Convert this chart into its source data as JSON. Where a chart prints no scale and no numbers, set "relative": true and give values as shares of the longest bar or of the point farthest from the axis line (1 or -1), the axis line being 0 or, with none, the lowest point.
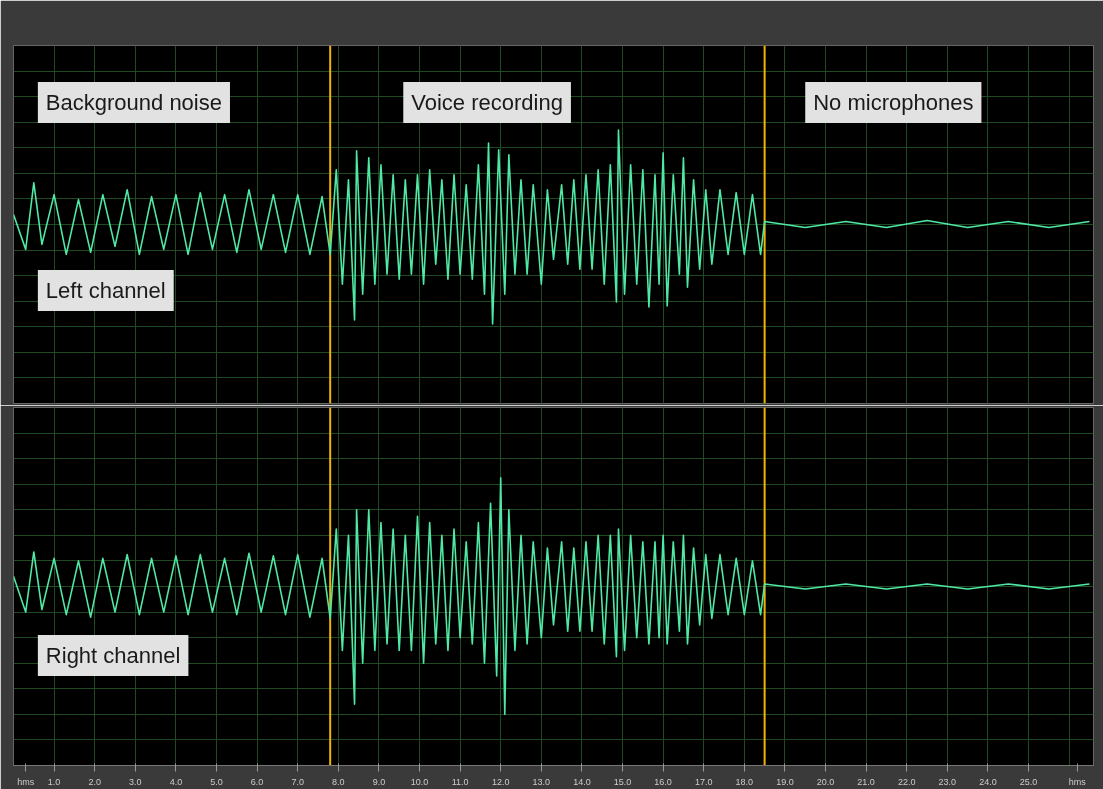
{
  "chart_data": [
    {
      "type": "line",
      "relative": true,
      "color": "#4fe8a4",
      "grid": true,
      "tick_labels": false,
      "xlim": [
        0,
        26.6
      ],
      "annotations": [
        "Background noise",
        "Voice recording",
        "No microphones",
        "Left channel"
      ],
      "ref_lines": [
        {
          "axis": "x",
          "value": 7.8,
          "color": "#f0b400"
        },
        {
          "axis": "x",
          "value": 18.5,
          "color": "#f0b400"
        }
      ],
      "x": [
        0.0,
        0.3,
        0.5,
        0.7,
        1.0,
        1.3,
        1.6,
        1.9,
        2.2,
        2.5,
        2.8,
        3.1,
        3.4,
        3.7,
        4.0,
        4.3,
        4.6,
        4.9,
        5.2,
        5.5,
        5.8,
        6.1,
        6.4,
        6.7,
        7.0,
        7.3,
        7.6,
        7.8,
        7.95,
        8.1,
        8.25,
        8.4,
        8.45,
        8.6,
        8.75,
        8.9,
        9.05,
        9.2,
        9.35,
        9.5,
        9.65,
        9.8,
        9.95,
        10.1,
        10.25,
        10.4,
        10.55,
        10.7,
        10.85,
        11.0,
        11.15,
        11.3,
        11.45,
        11.6,
        11.7,
        11.8,
        11.95,
        12.1,
        12.2,
        12.35,
        12.5,
        12.65,
        12.8,
        13.0,
        13.15,
        13.3,
        13.5,
        13.65,
        13.8,
        13.95,
        14.1,
        14.25,
        14.4,
        14.55,
        14.7,
        14.85,
        14.9,
        15.05,
        15.2,
        15.35,
        15.5,
        15.65,
        15.8,
        15.9,
        16.0,
        16.1,
        16.25,
        16.4,
        16.5,
        16.6,
        16.75,
        16.9,
        17.05,
        17.2,
        17.4,
        17.6,
        17.8,
        18.0,
        18.2,
        18.4,
        18.5,
        19.5,
        20.5,
        21.5,
        22.5,
        23.5,
        24.5,
        25.5,
        26.5
      ],
      "values": [
        0.1,
        -0.25,
        0.42,
        -0.2,
        0.3,
        -0.3,
        0.25,
        -0.28,
        0.3,
        -0.22,
        0.35,
        -0.3,
        0.28,
        -0.25,
        0.3,
        -0.3,
        0.32,
        -0.25,
        0.3,
        -0.28,
        0.35,
        -0.25,
        0.3,
        -0.28,
        0.3,
        -0.3,
        0.28,
        -0.3,
        0.55,
        -0.6,
        0.45,
        -0.96,
        0.74,
        -0.7,
        0.67,
        -0.6,
        0.6,
        -0.5,
        0.5,
        -0.55,
        0.45,
        -0.5,
        0.5,
        -0.6,
        0.55,
        -0.4,
        0.45,
        -0.55,
        0.5,
        -0.5,
        0.4,
        -0.55,
        0.6,
        -0.7,
        0.82,
        -1.0,
        0.75,
        -0.7,
        0.7,
        -0.5,
        0.45,
        -0.5,
        0.4,
        -0.6,
        0.35,
        -0.35,
        0.4,
        -0.4,
        0.45,
        -0.45,
        0.5,
        -0.45,
        0.55,
        -0.6,
        0.6,
        -0.78,
        0.95,
        -0.7,
        0.6,
        -0.6,
        0.55,
        -0.83,
        0.5,
        -0.6,
        0.72,
        -0.82,
        0.5,
        -0.5,
        0.67,
        -0.63,
        0.45,
        -0.45,
        0.35,
        -0.4,
        0.35,
        -0.3,
        0.32,
        -0.3,
        0.3,
        -0.3,
        0.03,
        -0.03,
        0.03,
        -0.03,
        0.04,
        -0.03,
        0.03,
        -0.03,
        0.03
      ]
    },
    {
      "type": "line",
      "relative": true,
      "color": "#4fe8a4",
      "grid": true,
      "tick_labels": "x",
      "xlim": [
        0,
        26.6
      ],
      "xticks": [
        {
          "value": 0.3,
          "label": "hms"
        },
        {
          "value": 1,
          "label": "1.0"
        },
        {
          "value": 2,
          "label": "2.0"
        },
        {
          "value": 3,
          "label": "3.0"
        },
        {
          "value": 4,
          "label": "4.0"
        },
        {
          "value": 5,
          "label": "5.0"
        },
        {
          "value": 6,
          "label": "6.0"
        },
        {
          "value": 7,
          "label": "7.0"
        },
        {
          "value": 8,
          "label": "8.0"
        },
        {
          "value": 9,
          "label": "9.0"
        },
        {
          "value": 10,
          "label": "10.0"
        },
        {
          "value": 11,
          "label": "11.0"
        },
        {
          "value": 12,
          "label": "12.0"
        },
        {
          "value": 13,
          "label": "13.0"
        },
        {
          "value": 14,
          "label": "14.0"
        },
        {
          "value": 15,
          "label": "15.0"
        },
        {
          "value": 16,
          "label": "16.0"
        },
        {
          "value": 17,
          "label": "17.0"
        },
        {
          "value": 18,
          "label": "18.0"
        },
        {
          "value": 19,
          "label": "19.0"
        },
        {
          "value": 20,
          "label": "20.0"
        },
        {
          "value": 21,
          "label": "21.0"
        },
        {
          "value": 22,
          "label": "22.0"
        },
        {
          "value": 23,
          "label": "23.0"
        },
        {
          "value": 24,
          "label": "24.0"
        },
        {
          "value": 25,
          "label": "25.0"
        },
        {
          "value": 26.2,
          "label": "hms"
        }
      ],
      "annotations": [
        "Right channel"
      ],
      "ref_lines": [
        {
          "axis": "x",
          "value": 7.8,
          "color": "#f0b400"
        },
        {
          "axis": "x",
          "value": 18.5,
          "color": "#f0b400"
        }
      ],
      "x": [
        0.0,
        0.3,
        0.5,
        0.7,
        1.0,
        1.3,
        1.6,
        1.9,
        2.2,
        2.5,
        2.8,
        3.1,
        3.4,
        3.7,
        4.0,
        4.3,
        4.6,
        4.9,
        5.2,
        5.5,
        5.8,
        6.1,
        6.4,
        6.7,
        7.0,
        7.3,
        7.6,
        7.8,
        7.95,
        8.1,
        8.25,
        8.4,
        8.45,
        8.6,
        8.75,
        8.9,
        9.05,
        9.2,
        9.35,
        9.5,
        9.65,
        9.8,
        9.95,
        10.1,
        10.25,
        10.4,
        10.55,
        10.7,
        10.85,
        11.0,
        11.15,
        11.3,
        11.45,
        11.6,
        11.75,
        11.9,
        12.0,
        12.1,
        12.2,
        12.35,
        12.5,
        12.65,
        12.8,
        13.0,
        13.15,
        13.3,
        13.5,
        13.65,
        13.8,
        13.95,
        14.1,
        14.25,
        14.4,
        14.55,
        14.7,
        14.85,
        14.9,
        15.05,
        15.2,
        15.35,
        15.5,
        15.65,
        15.8,
        15.9,
        16.0,
        16.1,
        16.25,
        16.4,
        16.5,
        16.6,
        16.75,
        16.9,
        17.05,
        17.2,
        17.4,
        17.6,
        17.8,
        18.0,
        18.2,
        18.4,
        18.5,
        19.5,
        20.5,
        21.5,
        22.5,
        23.5,
        24.5,
        25.5,
        26.5
      ],
      "values": [
        0.08,
        -0.2,
        0.27,
        -0.18,
        0.22,
        -0.22,
        0.2,
        -0.24,
        0.22,
        -0.2,
        0.25,
        -0.22,
        0.22,
        -0.2,
        0.24,
        -0.22,
        0.25,
        -0.2,
        0.22,
        -0.22,
        0.26,
        -0.2,
        0.24,
        -0.22,
        0.25,
        -0.24,
        0.22,
        -0.25,
        0.45,
        -0.5,
        0.4,
        -0.92,
        0.6,
        -0.6,
        0.6,
        -0.5,
        0.5,
        -0.45,
        0.45,
        -0.5,
        0.4,
        -0.5,
        0.55,
        -0.6,
        0.5,
        -0.45,
        0.4,
        -0.5,
        0.45,
        -0.4,
        0.35,
        -0.45,
        0.5,
        -0.6,
        0.65,
        -0.7,
        0.85,
        -1.0,
        0.6,
        -0.5,
        0.4,
        -0.45,
        0.35,
        -0.4,
        0.3,
        -0.3,
        0.35,
        -0.35,
        0.3,
        -0.35,
        0.35,
        -0.35,
        0.4,
        -0.45,
        0.4,
        -0.55,
        0.45,
        -0.5,
        0.4,
        -0.4,
        0.35,
        -0.45,
        0.35,
        -0.4,
        0.4,
        -0.45,
        0.35,
        -0.35,
        0.4,
        -0.45,
        0.3,
        -0.3,
        0.25,
        -0.25,
        0.25,
        -0.22,
        0.22,
        -0.22,
        0.2,
        -0.22,
        0.02,
        -0.02,
        0.02,
        -0.02,
        0.02,
        -0.02,
        0.02,
        -0.02,
        0.02
      ]
    }
  ]
}
